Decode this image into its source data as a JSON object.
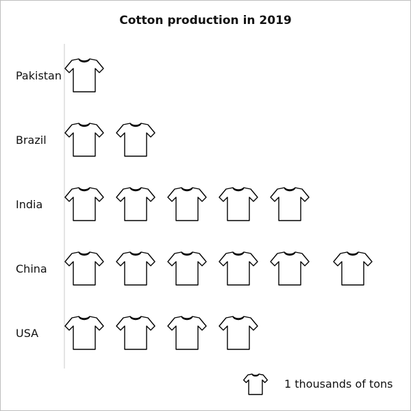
{
  "chart_data": {
    "type": "pictograph",
    "title": "Cotton production in 2019",
    "categories": [
      "Pakistan",
      "Brazil",
      "India",
      "China",
      "USA"
    ],
    "values": [
      1,
      2,
      5,
      6,
      4
    ],
    "unit_icon": "t-shirt-icon",
    "legend": {
      "label": "1 thousands of tons",
      "unit_value": 1
    }
  },
  "colors": {
    "icon_stroke": "#000000",
    "axis_line": "#c8c8c8",
    "frame": "#bdbdbd"
  }
}
